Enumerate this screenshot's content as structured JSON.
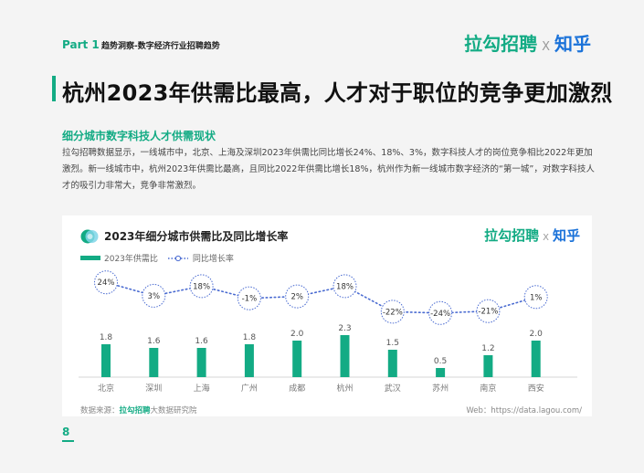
{
  "header": {
    "part": "Part 1",
    "section": "趋势洞察-数字经济行业招聘趋势",
    "brand_lagou": "拉勾招聘",
    "brand_x": "X",
    "brand_zhihu": "知乎"
  },
  "main_title": "杭州2023年供需比最高，人才对于职位的竞争更加激烈",
  "subheading": "细分城市数字科技人才供需现状",
  "paragraph": "拉勾招聘数据显示，一线城市中，北京、上海及深圳2023年供需比同比增长24%、18%、3%，数字科技人才的岗位竞争相比2022年更加激烈。新一线城市中，杭州2023年供需比最高，且同比2022年供需比增长18%，杭州作为新一线城市数字经济的“第一城”，对数字科技人才的吸引力非常大，竞争非常激烈。",
  "colors": {
    "accent": "#13ab84",
    "line": "#4a6bd1",
    "zhihu": "#1a72d9"
  },
  "chart_data": {
    "type": "bar",
    "title": "2023年细分城市供需比及同比增长率",
    "categories": [
      "北京",
      "深圳",
      "上海",
      "广州",
      "成都",
      "杭州",
      "武汉",
      "苏州",
      "南京",
      "西安"
    ],
    "series": [
      {
        "name": "2023年供需比",
        "type": "bar",
        "values": [
          1.8,
          1.6,
          1.6,
          1.8,
          2.0,
          2.3,
          1.5,
          0.5,
          1.2,
          2.0
        ],
        "labels": [
          "1.8",
          "1.6",
          "1.6",
          "1.8",
          "2.0",
          "2.3",
          "1.5",
          "0.5",
          "1.2",
          "2.0"
        ]
      },
      {
        "name": "同比增长率",
        "type": "line",
        "values": [
          24,
          3,
          18,
          -1,
          2,
          18,
          -22,
          -24,
          -21,
          1
        ],
        "labels": [
          "24%",
          "3%",
          "18%",
          "-1%",
          "2%",
          "18%",
          "-22%",
          "-24%",
          "-21%",
          "1%"
        ]
      }
    ],
    "legend": "top-left",
    "grid": false
  },
  "footer": {
    "source_prefix": "数据来源：",
    "source_brand": "拉勾招聘",
    "source_suffix": "大数据研究院",
    "web": "Web：https://data.lagou.com/",
    "page": "8"
  }
}
